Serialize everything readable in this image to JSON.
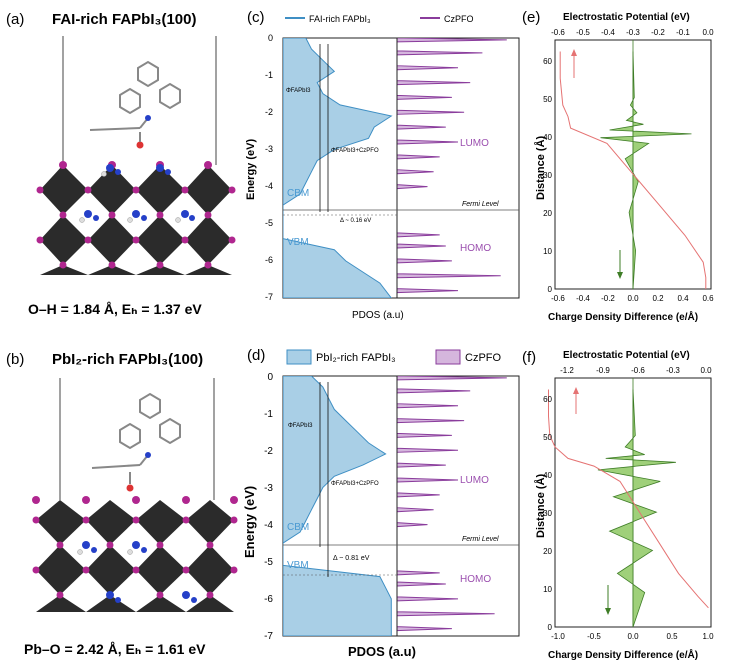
{
  "panels": {
    "a": {
      "label": "(a)",
      "title": "FAI-rich FAPbI₃(100)",
      "bond_text": "O–H = 1.84 Å, Eₕ = 1.37 eV"
    },
    "b": {
      "label": "(b)",
      "title": "PbI₂-rich FAPbI₃(100)",
      "bond_text": "Pb–O = 2.42 Å, Eₕ = 1.61 eV"
    },
    "c": {
      "label": "(c)",
      "legend_left": "FAI-rich FAPbI₃",
      "legend_right": "CzPFO",
      "xlabel": "PDOS (a.u)",
      "ylabel": "Energy (eV)",
      "phi_top": "ΦFAPbI3",
      "phi_bottom": "ΦFAPbI3+CzPFO",
      "delta": "Δ ~ 0.16 eV",
      "cbm": "CBM",
      "vbm": "VBM",
      "lumo": "LUMO",
      "homo": "HOMO",
      "fermi": "Fermi Level",
      "yticks": [
        "0",
        "-1",
        "-2",
        "-3",
        "-4",
        "-5",
        "-6",
        "-7"
      ]
    },
    "d": {
      "label": "(d)",
      "legend_left": "PbI₂-rich FAPbI₃",
      "legend_right": "CzPFO",
      "xlabel": "PDOS (a.u)",
      "ylabel": "Energy (eV)",
      "phi_top": "ΦFAPbI3",
      "phi_bottom": "ΦFAPbI3+CzPFO",
      "delta": "Δ ~ 0.81 eV",
      "cbm": "CBM",
      "vbm": "VBM",
      "lumo": "LUMO",
      "homo": "HOMO",
      "fermi": "Fermi Level",
      "yticks": [
        "0",
        "-1",
        "-2",
        "-3",
        "-4",
        "-5",
        "-6",
        "-7"
      ]
    },
    "e": {
      "label": "(e)",
      "top_title": "Electrostatic Potential (eV)",
      "bottom_title": "Charge Density Difference (e/Å)",
      "ylabel": "Distance (Å)",
      "top_ticks": [
        "-0.6",
        "-0.5",
        "-0.4",
        "-0.3",
        "-0.2",
        "-0.1",
        "0.0"
      ],
      "bottom_ticks": [
        "-0.6",
        "-0.4",
        "-0.2",
        "0.0",
        "0.2",
        "0.4",
        "0.6"
      ],
      "yticks": [
        "0",
        "10",
        "20",
        "30",
        "40",
        "50",
        "60"
      ]
    },
    "f": {
      "label": "(f)",
      "top_title": "Electrostatic Potential (eV)",
      "bottom_title": "Charge Density Difference (e/Å)",
      "ylabel": "Distance (Å)",
      "top_ticks": [
        "-1.2",
        "-0.9",
        "-0.6",
        "-0.3",
        "0.0"
      ],
      "bottom_ticks": [
        "-1.0",
        "-0.5",
        "0.0",
        "0.5",
        "1.0"
      ],
      "yticks": [
        "0",
        "10",
        "20",
        "30",
        "40",
        "50",
        "60"
      ]
    }
  },
  "colors": {
    "blue_fill": "#a9cfe6",
    "blue_line": "#3f8fc4",
    "purple_fill": "#d5b6dd",
    "purple_line": "#8a3c9c",
    "label_blue": "#4a9ad2",
    "label_purple": "#9b4faf",
    "green_fill": "#9fd07a",
    "green_line": "#3e7d26",
    "red_line": "#e57373",
    "crystal_dark": "#2b2b2b",
    "atom_magenta": "#b0268f"
  },
  "chart_data": [
    {
      "panel": "c",
      "type": "area",
      "title": "",
      "xlabel": "PDOS (a.u)",
      "ylabel": "Energy (eV)",
      "ylim": [
        -7,
        0
      ],
      "series": [
        {
          "name": "FAI-rich FAPbI₃",
          "energy": [
            0,
            -0.3,
            -0.6,
            -0.9,
            -1.2,
            -1.5,
            -1.8,
            -2.1,
            -2.4,
            -2.7,
            -3.0,
            -3.3,
            -3.6,
            -3.9,
            -4.2,
            -4.5,
            -4.8,
            -5.1,
            -5.4,
            -5.7,
            -6.0,
            -6.3,
            -6.6,
            -7.0
          ],
          "pdos": [
            0.2,
            0.25,
            0.35,
            0.45,
            0.3,
            0.35,
            0.5,
            0.95,
            0.8,
            0.75,
            0.45,
            0.3,
            0.25,
            0.2,
            0.15,
            0.0,
            0.0,
            0.0,
            0.0,
            0.45,
            0.55,
            0.7,
            0.85,
            0.95
          ]
        },
        {
          "name": "CzPFO",
          "energy": [
            -0.05,
            -0.4,
            -0.8,
            -1.2,
            -1.6,
            -2.0,
            -2.4,
            -2.8,
            -3.2,
            -3.6,
            -4.0,
            -5.3,
            -5.6,
            -6.0,
            -6.4,
            -6.8
          ],
          "pdos": [
            0.9,
            0.7,
            0.5,
            0.6,
            0.45,
            0.55,
            0.4,
            0.5,
            0.35,
            0.3,
            0.25,
            0.35,
            0.4,
            0.45,
            0.85,
            0.5
          ]
        }
      ]
    },
    {
      "panel": "d",
      "type": "area",
      "title": "",
      "xlabel": "PDOS (a.u)",
      "ylabel": "Energy (eV)",
      "ylim": [
        -7,
        0
      ],
      "series": [
        {
          "name": "PbI₂-rich FAPbI₃",
          "energy": [
            0,
            -0.3,
            -0.6,
            -0.9,
            -1.2,
            -1.5,
            -1.8,
            -2.1,
            -2.4,
            -2.7,
            -3.0,
            -3.3,
            -3.6,
            -3.9,
            -4.2,
            -4.5,
            -4.8,
            -5.1,
            -5.4,
            -5.7,
            -6.0,
            -6.3,
            -6.6,
            -7.0
          ],
          "pdos": [
            0.25,
            0.35,
            0.4,
            0.45,
            0.55,
            0.65,
            0.75,
            0.9,
            0.7,
            0.45,
            0.35,
            0.3,
            0.25,
            0.2,
            0.15,
            0.0,
            0.0,
            0.0,
            0.85,
            0.9,
            0.95,
            0.95,
            0.95,
            0.95
          ]
        },
        {
          "name": "CzPFO",
          "energy": [
            -0.05,
            -0.4,
            -0.8,
            -1.2,
            -1.6,
            -2.0,
            -2.4,
            -2.8,
            -3.2,
            -3.6,
            -4.0,
            -5.3,
            -5.6,
            -6.0,
            -6.4,
            -6.8
          ],
          "pdos": [
            0.9,
            0.6,
            0.5,
            0.55,
            0.45,
            0.5,
            0.4,
            0.5,
            0.35,
            0.3,
            0.25,
            0.35,
            0.4,
            0.5,
            0.8,
            0.45
          ]
        }
      ]
    },
    {
      "panel": "e",
      "type": "line",
      "xlabel": "Charge Density Difference (e/Å)",
      "ylabel": "Distance (Å)",
      "ylim": [
        0,
        65
      ],
      "series": [
        {
          "name": "Electrostatic Potential (eV)",
          "axis": "top",
          "xlim": [
            -0.6,
            0.0
          ],
          "x": [
            -0.58,
            -0.58,
            -0.57,
            -0.55,
            -0.54,
            -0.4,
            -0.3,
            -0.2,
            -0.1,
            -0.03,
            -0.02,
            -0.02
          ],
          "y": [
            62,
            55,
            48,
            45,
            42,
            38,
            30,
            22,
            14,
            7,
            3,
            0
          ]
        },
        {
          "name": "Charge Density Difference (e/Å)",
          "axis": "bottom",
          "xlim": [
            -0.6,
            0.6
          ],
          "x": [
            0,
            0.01,
            -0.02,
            0.03,
            -0.05,
            0.08,
            -0.18,
            0.45,
            -0.25,
            0.12,
            -0.06,
            0.04,
            -0.03,
            0.02,
            0
          ],
          "y": [
            62,
            50,
            48,
            46,
            44,
            43,
            41.5,
            40.5,
            39.5,
            38,
            34,
            28,
            20,
            10,
            0
          ]
        }
      ]
    },
    {
      "panel": "f",
      "type": "line",
      "xlabel": "Charge Density Difference (e/Å)",
      "ylabel": "Distance (Å)",
      "ylim": [
        0,
        65
      ],
      "series": [
        {
          "name": "Electrostatic Potential (eV)",
          "axis": "top",
          "xlim": [
            -1.2,
            0.0
          ],
          "x": [
            -1.25,
            -1.25,
            -1.24,
            -1.2,
            -1.1,
            -0.9,
            -0.7,
            -0.55,
            -0.4,
            -0.25,
            -0.1,
            -0.02
          ],
          "y": [
            62,
            55,
            50,
            47,
            44,
            42,
            38,
            30,
            22,
            14,
            8,
            5
          ]
        },
        {
          "name": "Charge Density Difference (e/Å)",
          "axis": "bottom",
          "xlim": [
            -1.0,
            1.0
          ],
          "x": [
            0,
            0.03,
            -0.1,
            0.15,
            -0.35,
            0.55,
            -0.45,
            0.35,
            -0.25,
            0.3,
            -0.3,
            0.25,
            -0.2,
            0.15,
            0
          ],
          "y": [
            62,
            50,
            47,
            45,
            44,
            43,
            41,
            38,
            34,
            30,
            25,
            20,
            14,
            9,
            0
          ]
        }
      ]
    }
  ]
}
